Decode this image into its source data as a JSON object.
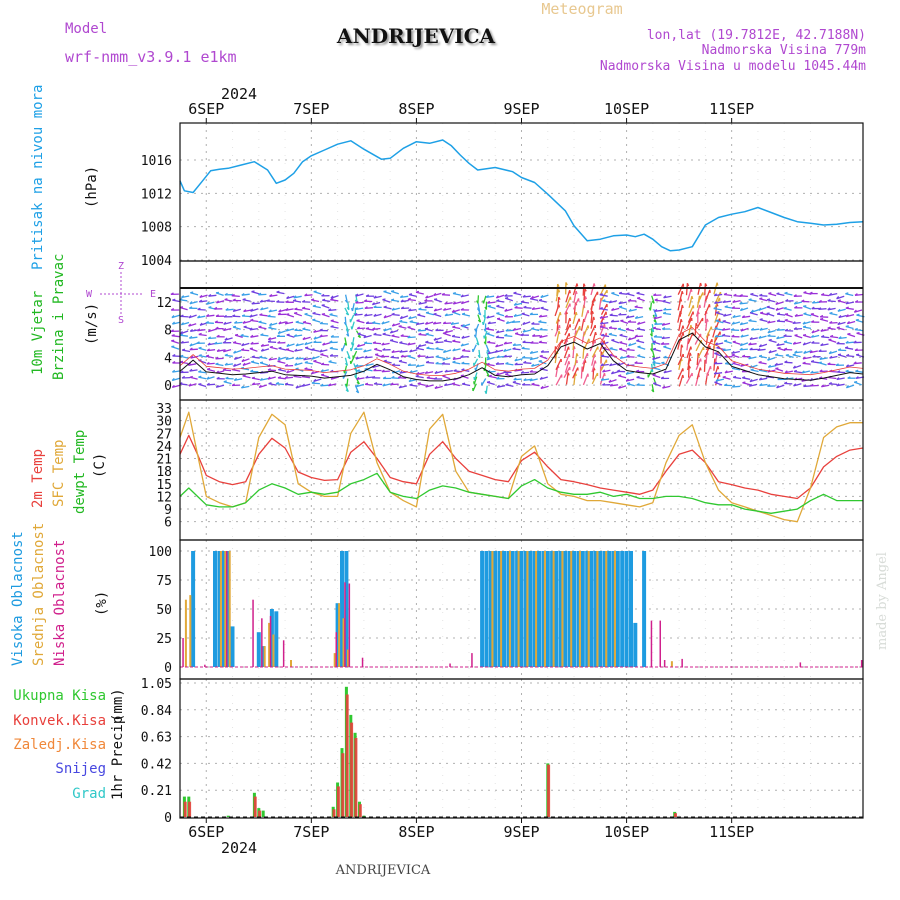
{
  "header": {
    "model_label": "Model",
    "model_value": "wrf-nmm_v3.9.1 e1km",
    "title": "ANDRIJEVICA",
    "meteogram": "Meteogram",
    "lonlat": "lon,lat (19.7812E, 42.7188N)",
    "elevation": "Nadmorska Visina 779m",
    "model_elevation": "Nadmorska Visina u modelu 1045.44m",
    "footer_title": "ANDRIJEVICA",
    "credit": "made by Angel",
    "year_top": "2024",
    "year_bottom": "2024"
  },
  "colors": {
    "pressure": "#1ea0e6",
    "temp2m": "#e8403c",
    "sfc": "#e0a838",
    "dewpt": "#30c830",
    "high_cloud": "#1e9be0",
    "mid_cloud": "#e0a838",
    "low_cloud": "#d0208c",
    "precip_total": "#30c830",
    "precip_conv": "#e8403c",
    "precip_frozen": "#f0883a",
    "snow": "#4848e0",
    "hail": "#30c8c8",
    "purple": "#b048d0",
    "grid": "#b0b0b0"
  },
  "chart_data": [
    {
      "type": "line",
      "panel": "pressure",
      "ylabel_main": "Pritisak na nivou mora",
      "ylabel_unit": "(hPa)",
      "yticks": [
        "1004",
        "1008",
        "1012",
        "1016"
      ],
      "ylim": [
        1004,
        1019
      ],
      "x_days": [
        "6SEP",
        "7SEP",
        "8SEP",
        "9SEP",
        "10SEP",
        "11SEP"
      ],
      "x_range_hours": [
        -6,
        150
      ],
      "series": [
        {
          "x": [
            -6,
            -5,
            -3,
            -1,
            1,
            3,
            5,
            8,
            11,
            14,
            16,
            18,
            20,
            22,
            24,
            27,
            30,
            33,
            36,
            40,
            42,
            45,
            48,
            51,
            54,
            56,
            58,
            60,
            62,
            66,
            70,
            72,
            75,
            78,
            82,
            84,
            87,
            90,
            93,
            96,
            98,
            100,
            102,
            104,
            106,
            108,
            111,
            114,
            117,
            120,
            123,
            126,
            129,
            132,
            135,
            138,
            141,
            144,
            147,
            150
          ],
          "values": [
            1013.5,
            1012.3,
            1012.1,
            1013.4,
            1014.7,
            1014.9,
            1015.0,
            1015.4,
            1015.8,
            1014.8,
            1013.2,
            1013.6,
            1014.4,
            1015.8,
            1016.5,
            1017.2,
            1017.9,
            1018.3,
            1017.3,
            1016.1,
            1016.2,
            1017.4,
            1018.2,
            1018.0,
            1018.4,
            1017.7,
            1016.6,
            1015.6,
            1014.8,
            1015.1,
            1014.6,
            1013.9,
            1013.3,
            1011.9,
            1009.9,
            1008.1,
            1006.3,
            1006.5,
            1006.9,
            1007.0,
            1006.8,
            1007.1,
            1006.5,
            1005.6,
            1005.1,
            1005.2,
            1005.6,
            1008.2,
            1009.1,
            1009.5,
            1009.8,
            1010.3,
            1009.7,
            1009.1,
            1008.6,
            1008.4,
            1008.2,
            1008.3,
            1008.5,
            1008.6
          ]
        }
      ]
    },
    {
      "type": "line",
      "panel": "wind",
      "ylabel_main": "10m Vjetar",
      "ylabel_main2": "Brzina i Pravac",
      "ylabel_unit": "(m/s)",
      "compass": [
        "Z",
        "W",
        "E",
        "S"
      ],
      "yticks": [
        "0",
        "4",
        "8",
        "12"
      ],
      "ylim": [
        -1,
        14
      ],
      "series": [
        {
          "name": "speed",
          "x": [
            -6,
            -3,
            0,
            3,
            6,
            9,
            12,
            15,
            18,
            21,
            24,
            27,
            30,
            33,
            36,
            39,
            42,
            45,
            48,
            51,
            54,
            57,
            60,
            63,
            66,
            69,
            72,
            75,
            78,
            81,
            84,
            87,
            90,
            93,
            96,
            99,
            102,
            105,
            108,
            111,
            114,
            117,
            120,
            123,
            126,
            129,
            132,
            135,
            138,
            141,
            144,
            147,
            150
          ],
          "values": [
            2.0,
            3.6,
            1.9,
            1.7,
            1.5,
            1.6,
            1.8,
            2.0,
            1.5,
            1.4,
            1.3,
            1.0,
            1.2,
            1.4,
            2.0,
            3.0,
            2.2,
            1.2,
            0.8,
            0.6,
            0.6,
            0.9,
            1.5,
            2.5,
            1.4,
            1.2,
            1.5,
            1.6,
            2.8,
            5.5,
            6.2,
            5.2,
            6.0,
            3.5,
            2.1,
            1.8,
            1.6,
            2.3,
            6.5,
            7.5,
            5.5,
            4.8,
            2.7,
            2.1,
            1.5,
            1.2,
            0.9,
            0.8,
            0.7,
            1.0,
            1.4,
            1.8,
            1.6
          ]
        }
      ]
    },
    {
      "type": "line",
      "panel": "temperature",
      "ylabel_main": "2m Temp",
      "ylabel_main2": "SFC Temp",
      "ylabel_main3": "dewpt Temp",
      "ylabel_unit": "(C)",
      "yticks": [
        "6",
        "9",
        "12",
        "15",
        "18",
        "21",
        "24",
        "27",
        "30",
        "33"
      ],
      "ylim": [
        4.5,
        33
      ],
      "x": [
        -6,
        -4,
        -2,
        0,
        3,
        6,
        9,
        12,
        15,
        18,
        21,
        24,
        27,
        30,
        33,
        36,
        39,
        42,
        45,
        48,
        51,
        54,
        57,
        60,
        63,
        66,
        69,
        72,
        75,
        78,
        81,
        84,
        87,
        90,
        93,
        96,
        99,
        102,
        105,
        108,
        111,
        114,
        117,
        120,
        123,
        126,
        129,
        132,
        135,
        138,
        141,
        144,
        147,
        150
      ],
      "series": [
        {
          "name": "2m Temp",
          "values": [
            22.0,
            26.5,
            22.0,
            17.0,
            15.5,
            14.8,
            15.5,
            22.0,
            25.8,
            23.5,
            17.8,
            16.5,
            15.8,
            16.0,
            22.5,
            25.0,
            21.0,
            16.5,
            15.5,
            15.0,
            22.0,
            25.0,
            21.0,
            18.0,
            17.0,
            16.0,
            15.5,
            20.5,
            22.5,
            19.0,
            16.0,
            15.5,
            14.8,
            14.0,
            13.5,
            13.0,
            12.5,
            13.5,
            18.0,
            22.0,
            23.0,
            20.0,
            15.5,
            14.8,
            14.0,
            13.5,
            12.5,
            12.0,
            11.5,
            14.0,
            19.0,
            21.5,
            23.0,
            23.5
          ]
        },
        {
          "name": "SFC Temp",
          "values": [
            26.0,
            32.0,
            22.0,
            12.0,
            10.5,
            9.5,
            10.5,
            26.0,
            31.5,
            29.0,
            15.0,
            13.0,
            12.0,
            12.0,
            27.0,
            32.0,
            20.0,
            13.0,
            11.0,
            9.5,
            28.0,
            31.5,
            18.0,
            13.0,
            12.5,
            12.0,
            11.5,
            21.5,
            24.0,
            15.0,
            12.5,
            12.0,
            11.0,
            11.0,
            10.5,
            10.0,
            9.5,
            10.5,
            20.0,
            26.5,
            29.0,
            20.0,
            13.5,
            10.5,
            9.5,
            8.5,
            7.5,
            6.5,
            6.0,
            14.0,
            26.0,
            28.5,
            29.5,
            29.5
          ]
        },
        {
          "name": "dewpt Temp",
          "values": [
            12.0,
            14.0,
            12.0,
            10.0,
            9.5,
            9.5,
            10.5,
            13.5,
            15.0,
            14.0,
            12.5,
            13.0,
            12.5,
            13.0,
            15.0,
            16.0,
            17.5,
            13.0,
            12.0,
            11.5,
            13.5,
            14.5,
            14.0,
            13.0,
            12.5,
            12.0,
            11.5,
            14.5,
            16.0,
            14.0,
            13.0,
            12.5,
            12.5,
            13.0,
            12.0,
            12.5,
            11.5,
            11.5,
            12.0,
            12.0,
            11.5,
            10.5,
            10.0,
            10.0,
            9.0,
            8.5,
            8.0,
            8.5,
            9.0,
            11.0,
            12.5,
            11.0,
            11.0,
            11.0
          ]
        }
      ]
    },
    {
      "type": "bar",
      "panel": "cloud",
      "ylabel_main": "Visoka Oblacnost",
      "ylabel_main2": "Srednja Oblacnost",
      "ylabel_main3": "Niska Oblacnost",
      "ylabel_unit": "(%)",
      "yticks": [
        "0",
        "25",
        "50",
        "75",
        "100"
      ],
      "ylim": [
        0,
        100
      ],
      "series": [
        {
          "name": "Visoka Oblacnost",
          "x": [
            -3,
            2,
            3,
            4,
            5,
            6,
            12,
            13,
            15,
            16,
            30,
            31,
            32,
            63,
            64,
            65,
            66,
            67,
            68,
            69,
            70,
            71,
            72,
            73,
            74,
            75,
            76,
            77,
            78,
            79,
            80,
            81,
            82,
            83,
            84,
            85,
            86,
            87,
            88,
            89,
            90,
            91,
            92,
            93,
            94,
            95,
            96,
            97,
            98,
            100
          ],
          "values": [
            100,
            100,
            100,
            100,
            100,
            35,
            30,
            18,
            50,
            48,
            55,
            100,
            100,
            100,
            100,
            100,
            100,
            100,
            100,
            100,
            100,
            100,
            100,
            100,
            100,
            100,
            100,
            100,
            100,
            100,
            100,
            100,
            100,
            100,
            100,
            100,
            100,
            100,
            100,
            100,
            100,
            100,
            100,
            100,
            100,
            100,
            100,
            100,
            38,
            100
          ]
        },
        {
          "name": "Srednja Oblacnost",
          "x": [
            -5,
            -4,
            3,
            4,
            5,
            13,
            14,
            15,
            19,
            29,
            30,
            31,
            32,
            65,
            67,
            69,
            71,
            73,
            75,
            77,
            79,
            81,
            83,
            85,
            87,
            89,
            91,
            93,
            106
          ],
          "values": [
            58,
            62,
            100,
            100,
            100,
            18,
            38,
            28,
            6,
            12,
            55,
            42,
            15,
            100,
            100,
            100,
            100,
            100,
            100,
            100,
            100,
            100,
            100,
            100,
            100,
            100,
            100,
            100,
            5
          ]
        },
        {
          "name": "Niska Oblacnost",
          "x": [
            -6,
            -1,
            4,
            10,
            12,
            14,
            17,
            29,
            31,
            32,
            35,
            55,
            60,
            101,
            103,
            104,
            108,
            135,
            149
          ],
          "values": [
            25,
            2,
            100,
            58,
            42,
            44,
            23,
            30,
            73,
            72,
            8,
            3,
            12,
            40,
            40,
            6,
            7,
            4,
            6
          ]
        }
      ]
    },
    {
      "type": "bar",
      "panel": "precip",
      "ylabel_main": "1hr Precip",
      "ylabel_unit": "(mm)",
      "legend": [
        "Ukupna Kisa",
        "Konvek.Kisa",
        "Zaledj.Kisa",
        "Snijeg",
        "Grad"
      ],
      "yticks": [
        "0",
        "0.21",
        "0.42",
        "0.63",
        "0.84",
        "1.05"
      ],
      "ylim": [
        0,
        1.05
      ],
      "series": [
        {
          "name": "Ukupna Kisa",
          "x": [
            -5,
            -4,
            5,
            11,
            12,
            13,
            29,
            30,
            31,
            32,
            33,
            34,
            35,
            36,
            78,
            107
          ],
          "values": [
            0.16,
            0.16,
            0.01,
            0.19,
            0.07,
            0.05,
            0.08,
            0.27,
            0.54,
            1.02,
            0.8,
            0.66,
            0.12,
            0.01,
            0.42,
            0.04
          ]
        },
        {
          "name": "Konvek.Kisa",
          "x": [
            -5,
            -4,
            11,
            12,
            29,
            30,
            31,
            32,
            33,
            34,
            35,
            78,
            107
          ],
          "values": [
            0.12,
            0.12,
            0.16,
            0.05,
            0.06,
            0.24,
            0.5,
            0.96,
            0.74,
            0.62,
            0.1,
            0.41,
            0.03
          ]
        }
      ]
    }
  ]
}
